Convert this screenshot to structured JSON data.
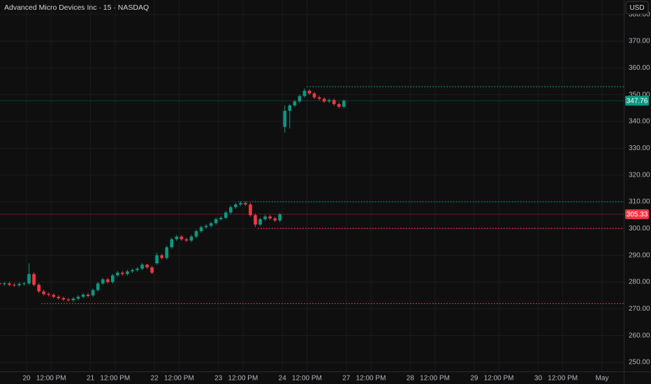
{
  "chart_data": {
    "type": "candlestick",
    "title": "Advanced Micro Devices Inc · 15 · NASDAQ",
    "currency": "USD",
    "up_color": "#089981",
    "down_color": "#f23645",
    "x": [
      -6,
      -5,
      -4,
      -3,
      -2,
      -1,
      0,
      1,
      2,
      3,
      4,
      5,
      6,
      7,
      8,
      9,
      10,
      11,
      12,
      13,
      14,
      15,
      16,
      17,
      18,
      19,
      20,
      21,
      22,
      23,
      24,
      25,
      26,
      27,
      28,
      29,
      30,
      31,
      32,
      33,
      34,
      35,
      36,
      37,
      38,
      39,
      40,
      41,
      42,
      43,
      44,
      45,
      46,
      47,
      48,
      49,
      50,
      51,
      52,
      53,
      54,
      55,
      56,
      57,
      58,
      59,
      60,
      61,
      62,
      63,
      64
    ],
    "open": [
      279.6,
      279.2,
      279.5,
      279.0,
      278.8,
      279.3,
      279.5,
      283,
      279,
      276.5,
      275.5,
      275.2,
      274.5,
      274,
      273.5,
      273.2,
      273.8,
      274.5,
      275.3,
      275,
      277,
      279.5,
      281,
      280,
      282.5,
      283.5,
      283,
      284,
      284.5,
      285,
      286.5,
      285.5,
      287,
      290,
      289,
      293,
      296,
      297,
      296,
      295.5,
      297,
      299,
      300.5,
      301,
      302,
      303.5,
      304,
      306,
      308,
      309,
      309.5,
      309,
      305,
      301.5,
      303.5,
      304.5,
      303.8,
      303,
      338,
      344,
      346,
      347.5,
      349.5,
      351.5,
      350.5,
      349,
      348.5,
      347.5,
      348,
      346.5,
      345.5
    ],
    "high": [
      280.2,
      280.1,
      280.1,
      279.6,
      279.9,
      280.1,
      287.0,
      283.6,
      279.6,
      277.1,
      276.1,
      275.8,
      275.1,
      274.6,
      274.1,
      274.4,
      275.1,
      275.9,
      275.9,
      277.6,
      280.1,
      281.6,
      281.6,
      283.1,
      284.1,
      284.1,
      284.6,
      285.1,
      285.6,
      287.1,
      286.8,
      286.1,
      291.0,
      290.6,
      293.6,
      296.6,
      297.6,
      297.6,
      296.6,
      297.6,
      299.6,
      301.1,
      301.6,
      302.6,
      304.1,
      304.6,
      306.6,
      308.6,
      309.6,
      310.2,
      310.1,
      309.6,
      305.6,
      304.1,
      305.1,
      305.1,
      304.4,
      305.9,
      346.0,
      346.6,
      348.1,
      350.1,
      352.3,
      352.1,
      351.1,
      349.6,
      349.1,
      348.6,
      348.6,
      347.1,
      348.3
    ],
    "low": [
      278.9,
      278.6,
      278.4,
      278.2,
      278.2,
      278.7,
      278.9,
      278.4,
      275.9,
      274.9,
      274.6,
      273.9,
      273.4,
      272.9,
      272.6,
      272.6,
      273.2,
      273.9,
      274.2,
      274.4,
      276.4,
      278.9,
      279.4,
      279.4,
      281.9,
      282.4,
      282.4,
      283.4,
      283.9,
      284.4,
      284.9,
      282.9,
      286.4,
      288.4,
      288.4,
      292.4,
      295.4,
      295.4,
      294.9,
      294.9,
      296.4,
      298.4,
      299.9,
      300.4,
      301.4,
      302.9,
      303.4,
      305.4,
      307.4,
      308.4,
      308.4,
      304.4,
      300.5,
      300.9,
      302.9,
      303.2,
      302.4,
      302.4,
      335.8,
      337.4,
      345.4,
      346.9,
      348.9,
      349.9,
      348.4,
      347.9,
      346.9,
      346.9,
      345.9,
      344.9,
      344.9
    ],
    "close": [
      279.2,
      279.5,
      279.0,
      278.8,
      279.3,
      279.5,
      283,
      279,
      276.5,
      275.5,
      275.2,
      274.5,
      274,
      273.5,
      273.2,
      273.8,
      274.5,
      275.3,
      274.8,
      277,
      279.5,
      281,
      280,
      282.5,
      283.5,
      283,
      284,
      284.5,
      285,
      286.5,
      285.5,
      283.5,
      290,
      289,
      293,
      296,
      297,
      296,
      295.5,
      297,
      299,
      300.5,
      301,
      302,
      303.5,
      304,
      306,
      308,
      309,
      309.5,
      309,
      305,
      301.5,
      303.5,
      304.5,
      303.8,
      303,
      305.33,
      344,
      346,
      347.5,
      349.5,
      351.5,
      350.5,
      349,
      348.5,
      347.5,
      348,
      346.5,
      345.5,
      347.76
    ],
    "xlim": [
      -5.4,
      121.4
    ],
    "xticks": [
      {
        "value": 0,
        "label": "20"
      },
      {
        "value": 5,
        "label": "12:00 PM"
      },
      {
        "value": 13,
        "label": "21"
      },
      {
        "value": 18,
        "label": "12:00 PM"
      },
      {
        "value": 26,
        "label": "22"
      },
      {
        "value": 31,
        "label": "12:00 PM"
      },
      {
        "value": 39,
        "label": "23"
      },
      {
        "value": 44,
        "label": "12:00 PM"
      },
      {
        "value": 52,
        "label": "24"
      },
      {
        "value": 57,
        "label": "12:00 PM"
      },
      {
        "value": 65,
        "label": "27"
      },
      {
        "value": 70,
        "label": "12:00 PM"
      },
      {
        "value": 78,
        "label": "28"
      },
      {
        "value": 83,
        "label": "12:00 PM"
      },
      {
        "value": 91,
        "label": "29"
      },
      {
        "value": 96,
        "label": "12:00 PM"
      },
      {
        "value": 104,
        "label": "30"
      },
      {
        "value": 109,
        "label": "12:00 PM"
      },
      {
        "value": 117,
        "label": "May"
      }
    ],
    "ylim": [
      246.6,
      385.4
    ],
    "yticks": [
      {
        "value": 250,
        "label": "250.00"
      },
      {
        "value": 260,
        "label": "260.00"
      },
      {
        "value": 270,
        "label": "270.00"
      },
      {
        "value": 280,
        "label": "280.00"
      },
      {
        "value": 290,
        "label": "290.00"
      },
      {
        "value": 300,
        "label": "300.00"
      },
      {
        "value": 310,
        "label": "310.00"
      },
      {
        "value": 320,
        "label": "320.00"
      },
      {
        "value": 330,
        "label": "330.00"
      },
      {
        "value": 340,
        "label": "340.00"
      },
      {
        "value": 350,
        "label": "350.00"
      },
      {
        "value": 360,
        "label": "360.00"
      },
      {
        "value": 370,
        "label": "370.00"
      },
      {
        "value": 380,
        "label": "380.00"
      }
    ],
    "grid": true,
    "levels": [
      {
        "value": 353,
        "start": 57,
        "color": "#089981"
      },
      {
        "value": 310,
        "start": 43,
        "color": "#089981"
      },
      {
        "value": 300,
        "start": 47,
        "color": "#f23645"
      },
      {
        "value": 272,
        "start": 3,
        "color": "#f23645"
      }
    ],
    "price_lines": [
      {
        "value": 347.76,
        "color": "#089981"
      },
      {
        "value": 305.33,
        "color": "#f23645"
      }
    ]
  }
}
